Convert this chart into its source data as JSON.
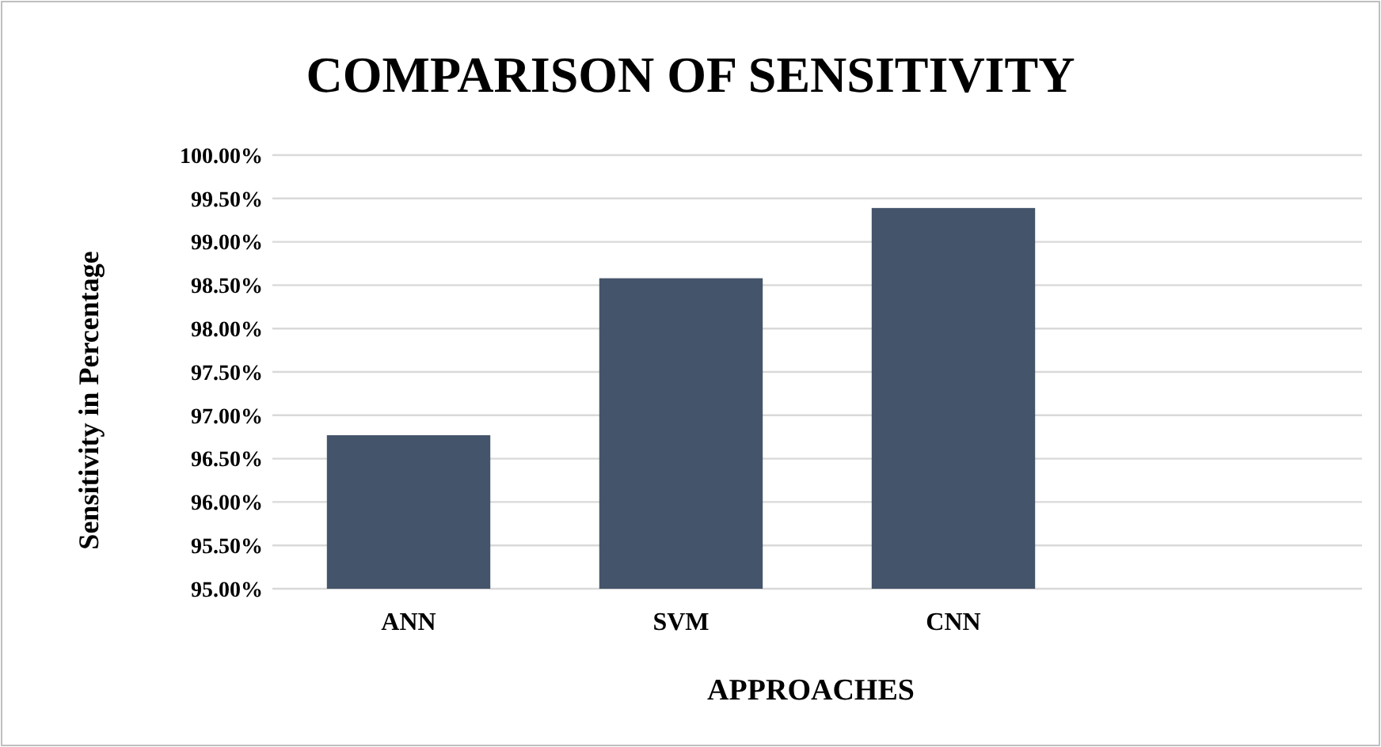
{
  "chart_data": {
    "type": "bar",
    "title": "COMPARISON OF SENSITIVITY",
    "xlabel": "APPROACHES",
    "ylabel": "Sensitivity in Percentage",
    "categories": [
      "ANN",
      "SVM",
      "CNN",
      null
    ],
    "values": [
      96.77,
      98.58,
      99.39,
      null
    ],
    "color": "#44546a",
    "ylim": [
      95,
      100
    ],
    "yticks": [
      {
        "value": 95,
        "label": "95.00%"
      },
      {
        "value": 95.5,
        "label": "95.50%"
      },
      {
        "value": 96,
        "label": "96.00%"
      },
      {
        "value": 96.5,
        "label": "96.50%"
      },
      {
        "value": 97,
        "label": "97.00%"
      },
      {
        "value": 97.5,
        "label": "97.50%"
      },
      {
        "value": 98,
        "label": "98.00%"
      },
      {
        "value": 98.5,
        "label": "98.50%"
      },
      {
        "value": 99,
        "label": "99.00%"
      },
      {
        "value": 99.5,
        "label": "99.50%"
      },
      {
        "value": 100,
        "label": "100.00%"
      }
    ],
    "grid": "y"
  }
}
